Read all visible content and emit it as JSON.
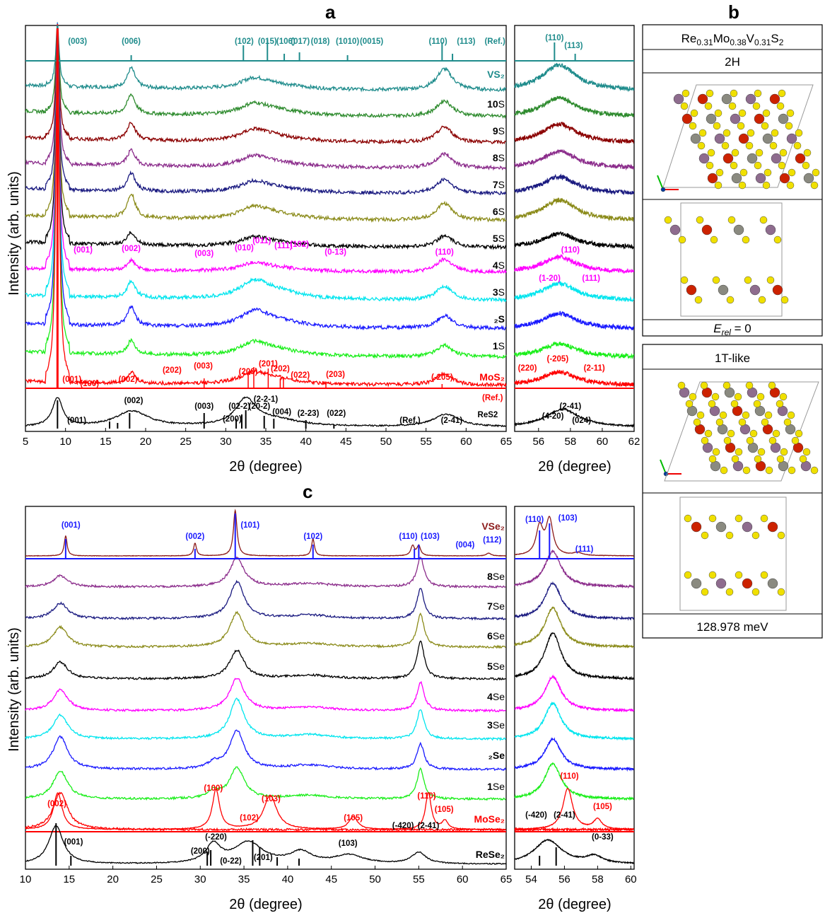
{
  "panels": {
    "a": "a",
    "b": "b",
    "c": "c"
  },
  "colors": {
    "teal": "#1f8c8c",
    "green": "#2e8b2e",
    "darkred": "#8b0000",
    "purple": "#8b2c8b",
    "navy": "#1a1a80",
    "olive": "#8b8b1a",
    "black": "#000000",
    "magenta": "#ff00ff",
    "cyan": "#00e5ee",
    "blue": "#1a1aff",
    "lime": "#1aee1a",
    "red": "#ff0000",
    "vse2": "#8b1a1a"
  },
  "chart_data": [
    {
      "type": "line",
      "panel": "a-main",
      "xlabel": "2θ (degree)",
      "ylabel": "Intensity (arb. units)",
      "xlim": [
        5,
        65
      ],
      "xticks": [
        5,
        10,
        15,
        20,
        25,
        30,
        35,
        40,
        45,
        50,
        55,
        60,
        65
      ],
      "series": [
        {
          "name": "(Ref.)",
          "color": "teal",
          "label_color": "teal"
        },
        {
          "name": "VS2",
          "color": "teal"
        },
        {
          "name": "10S",
          "color": "green"
        },
        {
          "name": "9S",
          "color": "darkred"
        },
        {
          "name": "8S",
          "color": "purple"
        },
        {
          "name": "7S",
          "color": "navy"
        },
        {
          "name": "6S",
          "color": "olive"
        },
        {
          "name": "5S",
          "color": "black"
        },
        {
          "name": "4S",
          "color": "magenta"
        },
        {
          "name": "3S",
          "color": "cyan"
        },
        {
          "name": "2S",
          "color": "blue"
        },
        {
          "name": "1S",
          "color": "lime"
        },
        {
          "name": "MoS2",
          "color": "red"
        },
        {
          "name": "(Ref.)",
          "color": "red"
        },
        {
          "name": "ReS2",
          "color": "black"
        }
      ],
      "annotations": {
        "vs2_ref": [
          {
            "x": 11.5,
            "text": "(003)"
          },
          {
            "x": 18.2,
            "text": "(006)"
          },
          {
            "x": 32.3,
            "text": "(102)"
          },
          {
            "x": 35.2,
            "text": "(015)"
          },
          {
            "x": 37.5,
            "text": "(106)"
          },
          {
            "x": 39.3,
            "text": "(017)"
          },
          {
            "x": 41.8,
            "text": "(018)"
          },
          {
            "x": 45.2,
            "text": "(1010)"
          },
          {
            "x": 48.2,
            "text": "(0015)"
          },
          {
            "x": 56.5,
            "text": "(110)"
          },
          {
            "x": 60.0,
            "text": "(113)"
          },
          {
            "x": 63.6,
            "text": "(Ref.)"
          }
        ],
        "s4": [
          {
            "x": 12.2,
            "text": "(001)"
          },
          {
            "x": 18.2,
            "text": "(002)"
          },
          {
            "x": 27.3,
            "text": "(003)"
          },
          {
            "x": 32.3,
            "text": "(010)"
          },
          {
            "x": 34.5,
            "text": "(011)"
          },
          {
            "x": 37.2,
            "text": "(111)"
          },
          {
            "x": 39.2,
            "text": "(102)"
          },
          {
            "x": 43.7,
            "text": "(0-13)"
          },
          {
            "x": 57.3,
            "text": "(110)"
          }
        ],
        "mos2": [
          {
            "x": 10.8,
            "text": "(001)"
          },
          {
            "x": 13.0,
            "text": "(100)"
          },
          {
            "x": 17.8,
            "text": "(002)"
          },
          {
            "x": 23.3,
            "text": "(202)"
          },
          {
            "x": 27.2,
            "text": "(003)"
          },
          {
            "x": 32.8,
            "text": "(200)"
          },
          {
            "x": 35.3,
            "text": "(201)"
          },
          {
            "x": 36.8,
            "text": "(202)"
          },
          {
            "x": 39.3,
            "text": "(022)"
          },
          {
            "x": 43.7,
            "text": "(203)"
          },
          {
            "x": 57.0,
            "text": "(-205)"
          },
          {
            "x": 63.3,
            "text": "(Ref.)"
          }
        ],
        "res2": [
          {
            "x": 11.4,
            "text": "(001)"
          },
          {
            "x": 18.5,
            "text": "(002)"
          },
          {
            "x": 27.3,
            "text": "(003)"
          },
          {
            "x": 30.8,
            "text": "(200)"
          },
          {
            "x": 31.7,
            "text": "(02-2)"
          },
          {
            "x": 34.2,
            "text": "(20-2)"
          },
          {
            "x": 35.0,
            "text": "(2-2-1)"
          },
          {
            "x": 37.0,
            "text": "(004)"
          },
          {
            "x": 40.3,
            "text": "(2-23)"
          },
          {
            "x": 43.8,
            "text": "(022)"
          },
          {
            "x": 53.0,
            "text": "(Ref.)"
          },
          {
            "x": 58.2,
            "text": "(2-41)"
          },
          {
            "x": 62.7,
            "text": "ReS2"
          }
        ]
      }
    },
    {
      "type": "line",
      "panel": "a-zoom",
      "xlabel": "2θ (degree)",
      "xlim": [
        54.5,
        62
      ],
      "xticks": [
        56,
        58,
        60,
        62
      ],
      "annotations": {
        "vs2_ref": [
          {
            "x": 57.0,
            "text": "(110)"
          },
          {
            "x": 58.2,
            "text": "(113)"
          }
        ],
        "s4": [
          {
            "x": 56.7,
            "text": "(1-20)"
          },
          {
            "x": 58.0,
            "text": "(110)"
          },
          {
            "x": 59.3,
            "text": "(111)"
          }
        ],
        "mos2": [
          {
            "x": 55.3,
            "text": "(220)"
          },
          {
            "x": 57.2,
            "text": "(-205)"
          },
          {
            "x": 59.5,
            "text": "(2-11)"
          }
        ],
        "res2": [
          {
            "x": 58.0,
            "text": "(2-41)"
          },
          {
            "x": 56.9,
            "text": "(4-20)"
          },
          {
            "x": 58.7,
            "text": "(024)"
          }
        ]
      }
    },
    {
      "type": "line",
      "panel": "c-main",
      "xlabel": "2θ (degree)",
      "ylabel": "Intensity (arb. units)",
      "xlim": [
        10,
        65
      ],
      "xticks": [
        10,
        15,
        20,
        25,
        30,
        35,
        40,
        45,
        50,
        55,
        60,
        65
      ],
      "series": [
        {
          "name": "VSe2",
          "color": "vse2"
        },
        {
          "name": "8Se",
          "color": "purple"
        },
        {
          "name": "7Se",
          "color": "navy"
        },
        {
          "name": "6Se",
          "color": "olive"
        },
        {
          "name": "5Se",
          "color": "black"
        },
        {
          "name": "4Se",
          "color": "magenta"
        },
        {
          "name": "3Se",
          "color": "cyan"
        },
        {
          "name": "2Se",
          "color": "blue"
        },
        {
          "name": "1Se",
          "color": "lime"
        },
        {
          "name": "MoSe2",
          "color": "red"
        },
        {
          "name": "ReSe2",
          "color": "black"
        }
      ],
      "annotations": {
        "vse2": [
          {
            "x": 15.2,
            "text": "(001)"
          },
          {
            "x": 29.4,
            "text": "(002)"
          },
          {
            "x": 35.7,
            "text": "(101)"
          },
          {
            "x": 42.9,
            "text": "(102)"
          },
          {
            "x": 53.8,
            "text": "(110)"
          },
          {
            "x": 56.3,
            "text": "(103)"
          },
          {
            "x": 60.3,
            "text": "(004)"
          },
          {
            "x": 63.4,
            "text": "(112)"
          }
        ],
        "mose2": [
          {
            "x": 13.6,
            "text": "(002)"
          },
          {
            "x": 31.5,
            "text": "(100)"
          },
          {
            "x": 35.6,
            "text": "(102)"
          },
          {
            "x": 38.1,
            "text": "(103)"
          },
          {
            "x": 47.5,
            "text": "(105)"
          },
          {
            "x": 55.9,
            "text": "(110)"
          },
          {
            "x": 57.9,
            "text": "(105)"
          }
        ],
        "rese2": [
          {
            "x": 15.5,
            "text": "(001)"
          },
          {
            "x": 30.0,
            "text": "(200)"
          },
          {
            "x": 31.8,
            "text": "(-220)"
          },
          {
            "x": 33.5,
            "text": "(0-22)"
          },
          {
            "x": 37.2,
            "text": "(201)"
          },
          {
            "x": 46.9,
            "text": "(103)"
          },
          {
            "x": 53.2,
            "text": "(-420)"
          },
          {
            "x": 56.1,
            "text": "(2-41)"
          }
        ]
      }
    },
    {
      "type": "line",
      "panel": "c-zoom",
      "xlabel": "2θ (degree)",
      "xlim": [
        53,
        60.2
      ],
      "xticks": [
        54,
        56,
        58,
        60
      ],
      "annotations": {
        "vse2": [
          {
            "x": 54.2,
            "text": "(110)"
          },
          {
            "x": 56.2,
            "text": "(103)"
          },
          {
            "x": 57.2,
            "text": "(111)"
          }
        ],
        "mose2": [
          {
            "x": 56.3,
            "text": "(110)"
          },
          {
            "x": 58.3,
            "text": "(105)"
          }
        ],
        "rese2": [
          {
            "x": 54.3,
            "text": "(-420)"
          },
          {
            "x": 56.0,
            "text": "(2-41)"
          },
          {
            "x": 58.3,
            "text": "(0-33)"
          }
        ]
      }
    }
  ],
  "structure_panel": {
    "formula": "Re0.31Mo0.38V0.31S2",
    "phase1": "2H",
    "energy1": "E_rel = 0",
    "phase2": "1T-like",
    "energy2": "128.978 meV"
  }
}
